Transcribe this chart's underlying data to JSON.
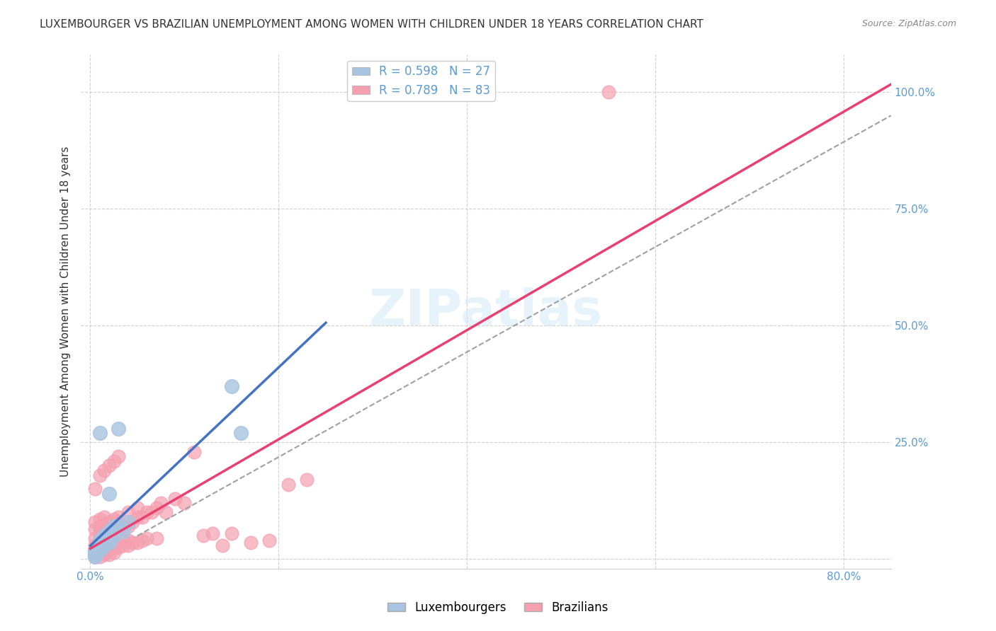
{
  "title": "LUXEMBOURGER VS BRAZILIAN UNEMPLOYMENT AMONG WOMEN WITH CHILDREN UNDER 18 YEARS CORRELATION CHART",
  "source": "Source: ZipAtlas.com",
  "xlabel_bottom": "",
  "ylabel": "Unemployment Among Women with Children Under 18 years",
  "x_ticks": [
    0.0,
    0.2,
    0.4,
    0.6,
    0.8
  ],
  "x_tick_labels": [
    "0.0%",
    "",
    "",
    "",
    "80.0%"
  ],
  "y_ticks": [
    0.0,
    0.25,
    0.5,
    0.75,
    1.0
  ],
  "y_tick_labels": [
    "",
    "25.0%",
    "50.0%",
    "75.0%",
    "100.0%"
  ],
  "xlim": [
    -0.01,
    0.85
  ],
  "ylim": [
    -0.02,
    1.08
  ],
  "lux_R": 0.598,
  "lux_N": 27,
  "bra_R": 0.789,
  "bra_N": 83,
  "lux_color": "#a8c4e0",
  "bra_color": "#f4a0b0",
  "lux_line_color": "#4472c4",
  "bra_line_color": "#e84070",
  "dashed_line_color": "#a0a0a0",
  "watermark": "ZIPatlas",
  "background_color": "#ffffff",
  "grid_color": "#d0d0d0",
  "legend_items": [
    "Luxembourgers",
    "Brazilians"
  ],
  "lux_scatter": {
    "x": [
      0.01,
      0.02,
      0.03,
      0.01,
      0.005,
      0.015,
      0.02,
      0.025,
      0.01,
      0.005,
      0.03,
      0.04,
      0.035,
      0.02,
      0.015,
      0.01,
      0.005,
      0.025,
      0.15,
      0.16,
      0.005,
      0.01,
      0.015,
      0.02,
      0.005,
      0.01,
      0.005
    ],
    "y": [
      0.27,
      0.14,
      0.28,
      0.04,
      0.02,
      0.05,
      0.06,
      0.07,
      0.03,
      0.01,
      0.07,
      0.08,
      0.06,
      0.04,
      0.03,
      0.02,
      0.015,
      0.05,
      0.37,
      0.27,
      0.01,
      0.035,
      0.04,
      0.035,
      0.015,
      0.02,
      0.005
    ]
  },
  "bra_scatter": {
    "x": [
      0.005,
      0.01,
      0.015,
      0.02,
      0.025,
      0.03,
      0.035,
      0.04,
      0.045,
      0.05,
      0.055,
      0.06,
      0.065,
      0.07,
      0.075,
      0.005,
      0.01,
      0.015,
      0.02,
      0.025,
      0.03,
      0.035,
      0.04,
      0.01,
      0.015,
      0.02,
      0.025,
      0.005,
      0.01,
      0.015,
      0.02,
      0.025,
      0.03,
      0.035,
      0.04,
      0.045,
      0.05,
      0.055,
      0.06,
      0.07,
      0.08,
      0.09,
      0.1,
      0.11,
      0.12,
      0.13,
      0.14,
      0.15,
      0.17,
      0.19,
      0.005,
      0.01,
      0.015,
      0.02,
      0.025,
      0.01,
      0.015,
      0.02,
      0.025,
      0.03,
      0.005,
      0.01,
      0.015,
      0.005,
      0.01,
      0.015,
      0.02,
      0.005,
      0.01,
      0.015,
      0.005,
      0.01,
      0.21,
      0.23,
      0.005,
      0.01,
      0.015,
      0.02,
      0.025,
      0.03,
      0.04,
      0.05,
      0.55
    ],
    "y": [
      0.02,
      0.03,
      0.04,
      0.05,
      0.05,
      0.06,
      0.07,
      0.07,
      0.08,
      0.09,
      0.09,
      0.1,
      0.1,
      0.11,
      0.12,
      0.15,
      0.18,
      0.19,
      0.2,
      0.21,
      0.22,
      0.04,
      0.04,
      0.025,
      0.03,
      0.03,
      0.035,
      0.01,
      0.015,
      0.015,
      0.02,
      0.025,
      0.025,
      0.03,
      0.03,
      0.035,
      0.035,
      0.04,
      0.045,
      0.045,
      0.1,
      0.13,
      0.12,
      0.23,
      0.05,
      0.055,
      0.03,
      0.055,
      0.035,
      0.04,
      0.005,
      0.005,
      0.01,
      0.01,
      0.015,
      0.06,
      0.065,
      0.07,
      0.075,
      0.08,
      0.08,
      0.085,
      0.09,
      0.045,
      0.05,
      0.055,
      0.06,
      0.03,
      0.032,
      0.034,
      0.02,
      0.022,
      0.16,
      0.17,
      0.065,
      0.07,
      0.075,
      0.08,
      0.085,
      0.09,
      0.1,
      0.11,
      1.0
    ]
  }
}
